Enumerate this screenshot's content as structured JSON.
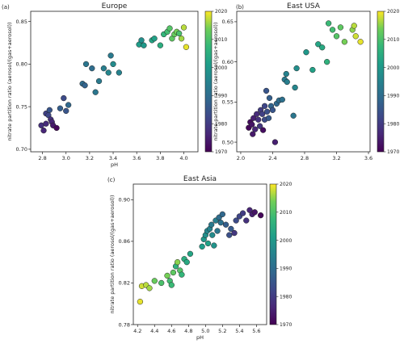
{
  "figure": {
    "colormap": "viridis",
    "colorbar_range": [
      1970,
      2020
    ],
    "colorbar_ticks": [
      "1970",
      "1980",
      "1990",
      "2000",
      "2010",
      "2020"
    ],
    "ylabel": "nitrate partition ratio (aerosol/(gas+aerosol))",
    "xlabel": "pH"
  },
  "chart_data": [
    {
      "type": "scatter",
      "letter": "(a)",
      "title": "Europe",
      "xlabel": "pH",
      "ylabel": "nitrate partition ratio (aerosol/(gas+aerosol))",
      "xlim": [
        2.7,
        4.12
      ],
      "ylim": [
        0.697,
        0.862
      ],
      "xticks": [
        "2.8",
        "3.0",
        "3.2",
        "3.4",
        "3.6",
        "3.8",
        "4.0"
      ],
      "yticks": [
        "0.70",
        "0.75",
        "0.80",
        "0.85"
      ],
      "points": [
        {
          "x": 2.79,
          "y": 0.728,
          "year": 1978
        },
        {
          "x": 2.81,
          "y": 0.722,
          "year": 1976
        },
        {
          "x": 2.83,
          "y": 0.73,
          "year": 1977
        },
        {
          "x": 2.83,
          "y": 0.742,
          "year": 1981
        },
        {
          "x": 2.85,
          "y": 0.74,
          "year": 1982
        },
        {
          "x": 2.86,
          "y": 0.746,
          "year": 1985
        },
        {
          "x": 2.87,
          "y": 0.735,
          "year": 1978
        },
        {
          "x": 2.88,
          "y": 0.732,
          "year": 1976
        },
        {
          "x": 2.89,
          "y": 0.728,
          "year": 1974
        },
        {
          "x": 2.92,
          "y": 0.725,
          "year": 1971
        },
        {
          "x": 2.95,
          "y": 0.748,
          "year": 1987
        },
        {
          "x": 3.0,
          "y": 0.745,
          "year": 1985
        },
        {
          "x": 3.02,
          "y": 0.752,
          "year": 1989
        },
        {
          "x": 2.98,
          "y": 0.76,
          "year": 1983
        },
        {
          "x": 3.14,
          "y": 0.777,
          "year": 1990
        },
        {
          "x": 3.16,
          "y": 0.775,
          "year": 1988
        },
        {
          "x": 3.17,
          "y": 0.8,
          "year": 1992
        },
        {
          "x": 3.22,
          "y": 0.795,
          "year": 1990
        },
        {
          "x": 3.25,
          "y": 0.767,
          "year": 1992
        },
        {
          "x": 3.28,
          "y": 0.78,
          "year": 1993
        },
        {
          "x": 3.32,
          "y": 0.795,
          "year": 1994
        },
        {
          "x": 3.36,
          "y": 0.79,
          "year": 1996
        },
        {
          "x": 3.38,
          "y": 0.81,
          "year": 1993
        },
        {
          "x": 3.4,
          "y": 0.8,
          "year": 1997
        },
        {
          "x": 3.45,
          "y": 0.79,
          "year": 1995
        },
        {
          "x": 3.62,
          "y": 0.823,
          "year": 2001
        },
        {
          "x": 3.64,
          "y": 0.828,
          "year": 1998
        },
        {
          "x": 3.66,
          "y": 0.822,
          "year": 2000
        },
        {
          "x": 3.73,
          "y": 0.828,
          "year": 2003
        },
        {
          "x": 3.75,
          "y": 0.83,
          "year": 2002
        },
        {
          "x": 3.8,
          "y": 0.822,
          "year": 2005
        },
        {
          "x": 3.83,
          "y": 0.835,
          "year": 2007
        },
        {
          "x": 3.86,
          "y": 0.838,
          "year": 2009
        },
        {
          "x": 3.88,
          "y": 0.842,
          "year": 2011
        },
        {
          "x": 3.9,
          "y": 0.83,
          "year": 2012
        },
        {
          "x": 3.92,
          "y": 0.835,
          "year": 2013
        },
        {
          "x": 3.94,
          "y": 0.838,
          "year": 2014
        },
        {
          "x": 3.96,
          "y": 0.836,
          "year": 2010
        },
        {
          "x": 3.98,
          "y": 0.83,
          "year": 2016
        },
        {
          "x": 4.0,
          "y": 0.843,
          "year": 2017
        },
        {
          "x": 4.02,
          "y": 0.82,
          "year": 2019
        }
      ]
    },
    {
      "type": "scatter",
      "letter": "(b)",
      "title": "East USA",
      "xlabel": "",
      "ylabel": "nitrate partition ratio (aerosol/(gas+aerosol))",
      "xlim": [
        1.95,
        3.62
      ],
      "ylim": [
        0.488,
        0.663
      ],
      "xticks": [
        "2.0",
        "2.4",
        "2.8",
        "3.2",
        "3.6"
      ],
      "yticks": [
        "0.50",
        "0.55",
        "0.60",
        "0.65"
      ],
      "points": [
        {
          "x": 2.1,
          "y": 0.518,
          "year": 1971
        },
        {
          "x": 2.12,
          "y": 0.525,
          "year": 1972
        },
        {
          "x": 2.14,
          "y": 0.522,
          "year": 1973
        },
        {
          "x": 2.15,
          "y": 0.51,
          "year": 1974
        },
        {
          "x": 2.16,
          "y": 0.53,
          "year": 1975
        },
        {
          "x": 2.18,
          "y": 0.516,
          "year": 1976
        },
        {
          "x": 2.2,
          "y": 0.535,
          "year": 1977
        },
        {
          "x": 2.22,
          "y": 0.528,
          "year": 1978
        },
        {
          "x": 2.24,
          "y": 0.52,
          "year": 1979
        },
        {
          "x": 2.25,
          "y": 0.54,
          "year": 1980
        },
        {
          "x": 2.27,
          "y": 0.535,
          "year": 1981
        },
        {
          "x": 2.28,
          "y": 0.515,
          "year": 1972
        },
        {
          "x": 2.3,
          "y": 0.545,
          "year": 1982
        },
        {
          "x": 2.3,
          "y": 0.528,
          "year": 1983
        },
        {
          "x": 2.32,
          "y": 0.564,
          "year": 1985
        },
        {
          "x": 2.33,
          "y": 0.538,
          "year": 1984
        },
        {
          "x": 2.35,
          "y": 0.53,
          "year": 1986
        },
        {
          "x": 2.36,
          "y": 0.555,
          "year": 1987
        },
        {
          "x": 2.38,
          "y": 0.545,
          "year": 1988
        },
        {
          "x": 2.4,
          "y": 0.54,
          "year": 1985
        },
        {
          "x": 2.43,
          "y": 0.5,
          "year": 1975
        },
        {
          "x": 2.45,
          "y": 0.548,
          "year": 1989
        },
        {
          "x": 2.48,
          "y": 0.552,
          "year": 1990
        },
        {
          "x": 2.52,
          "y": 0.553,
          "year": 1991
        },
        {
          "x": 2.55,
          "y": 0.578,
          "year": 1993
        },
        {
          "x": 2.57,
          "y": 0.585,
          "year": 1995
        },
        {
          "x": 2.58,
          "y": 0.575,
          "year": 1994
        },
        {
          "x": 2.66,
          "y": 0.533,
          "year": 1992
        },
        {
          "x": 2.68,
          "y": 0.568,
          "year": 1996
        },
        {
          "x": 2.7,
          "y": 0.592,
          "year": 1998
        },
        {
          "x": 2.82,
          "y": 0.612,
          "year": 2000
        },
        {
          "x": 2.9,
          "y": 0.59,
          "year": 2002
        },
        {
          "x": 2.97,
          "y": 0.622,
          "year": 2003
        },
        {
          "x": 3.02,
          "y": 0.618,
          "year": 2004
        },
        {
          "x": 3.08,
          "y": 0.6,
          "year": 2006
        },
        {
          "x": 3.1,
          "y": 0.648,
          "year": 2008
        },
        {
          "x": 3.15,
          "y": 0.64,
          "year": 2009
        },
        {
          "x": 3.2,
          "y": 0.632,
          "year": 2011
        },
        {
          "x": 3.25,
          "y": 0.643,
          "year": 2012
        },
        {
          "x": 3.3,
          "y": 0.625,
          "year": 2014
        },
        {
          "x": 3.4,
          "y": 0.64,
          "year": 2015
        },
        {
          "x": 3.42,
          "y": 0.645,
          "year": 2017
        },
        {
          "x": 3.44,
          "y": 0.632,
          "year": 2018
        },
        {
          "x": 3.5,
          "y": 0.625,
          "year": 2019
        }
      ]
    },
    {
      "type": "scatter",
      "letter": "(c)",
      "title": "East Asia",
      "xlabel": "pH",
      "ylabel": "nitrate partition ratio (aerosol/(gas+aerosol))",
      "xlim": [
        4.15,
        5.72
      ],
      "ylim": [
        0.78,
        0.915
      ],
      "xticks": [
        "4.2",
        "4.4",
        "4.6",
        "4.8",
        "5.0",
        "5.2",
        "5.4",
        "5.6"
      ],
      "yticks": [
        "0.78",
        "0.82",
        "0.86",
        "0.90"
      ],
      "points": [
        {
          "x": 4.23,
          "y": 0.802,
          "year": 2019
        },
        {
          "x": 4.25,
          "y": 0.817,
          "year": 2018
        },
        {
          "x": 4.3,
          "y": 0.818,
          "year": 2017
        },
        {
          "x": 4.34,
          "y": 0.815,
          "year": 2016
        },
        {
          "x": 4.4,
          "y": 0.822,
          "year": 2013
        },
        {
          "x": 4.48,
          "y": 0.82,
          "year": 2010
        },
        {
          "x": 4.55,
          "y": 0.827,
          "year": 2014
        },
        {
          "x": 4.58,
          "y": 0.822,
          "year": 2009
        },
        {
          "x": 4.6,
          "y": 0.818,
          "year": 2008
        },
        {
          "x": 4.62,
          "y": 0.83,
          "year": 2012
        },
        {
          "x": 4.65,
          "y": 0.836,
          "year": 2006
        },
        {
          "x": 4.67,
          "y": 0.84,
          "year": 2015
        },
        {
          "x": 4.7,
          "y": 0.832,
          "year": 2011
        },
        {
          "x": 4.72,
          "y": 0.828,
          "year": 2007
        },
        {
          "x": 4.75,
          "y": 0.843,
          "year": 2005
        },
        {
          "x": 4.78,
          "y": 0.84,
          "year": 2004
        },
        {
          "x": 4.82,
          "y": 0.848,
          "year": 2003
        },
        {
          "x": 4.96,
          "y": 0.855,
          "year": 2001
        },
        {
          "x": 4.98,
          "y": 0.862,
          "year": 2000
        },
        {
          "x": 5.0,
          "y": 0.866,
          "year": 1998
        },
        {
          "x": 5.02,
          "y": 0.87,
          "year": 1996
        },
        {
          "x": 5.03,
          "y": 0.858,
          "year": 2002
        },
        {
          "x": 5.05,
          "y": 0.872,
          "year": 1995
        },
        {
          "x": 5.07,
          "y": 0.876,
          "year": 1993
        },
        {
          "x": 5.08,
          "y": 0.866,
          "year": 1997
        },
        {
          "x": 5.1,
          "y": 0.856,
          "year": 1999
        },
        {
          "x": 5.12,
          "y": 0.88,
          "year": 1994
        },
        {
          "x": 5.14,
          "y": 0.87,
          "year": 1992
        },
        {
          "x": 5.16,
          "y": 0.883,
          "year": 1990
        },
        {
          "x": 5.18,
          "y": 0.878,
          "year": 1991
        },
        {
          "x": 5.2,
          "y": 0.886,
          "year": 1989
        },
        {
          "x": 5.24,
          "y": 0.876,
          "year": 1987
        },
        {
          "x": 5.28,
          "y": 0.866,
          "year": 1984
        },
        {
          "x": 5.3,
          "y": 0.872,
          "year": 1986
        },
        {
          "x": 5.34,
          "y": 0.868,
          "year": 1979
        },
        {
          "x": 5.36,
          "y": 0.88,
          "year": 1983
        },
        {
          "x": 5.4,
          "y": 0.884,
          "year": 1982
        },
        {
          "x": 5.44,
          "y": 0.887,
          "year": 1980
        },
        {
          "x": 5.48,
          "y": 0.88,
          "year": 1978
        },
        {
          "x": 5.52,
          "y": 0.89,
          "year": 1976
        },
        {
          "x": 5.55,
          "y": 0.886,
          "year": 1975
        },
        {
          "x": 5.58,
          "y": 0.888,
          "year": 1973
        },
        {
          "x": 5.65,
          "y": 0.885,
          "year": 1971
        }
      ]
    }
  ]
}
